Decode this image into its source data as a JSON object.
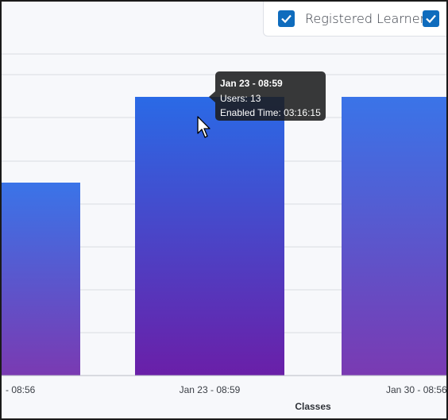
{
  "legend": {
    "items": [
      {
        "label": "Registered Learners",
        "checked": true
      },
      {
        "label": "",
        "checked": true
      }
    ]
  },
  "tooltip": {
    "title": "Jan 23 - 08:59",
    "users_label": "Users:",
    "users_value": "13",
    "time_label": "Enabled Time:",
    "time_value": "03:16:15"
  },
  "chart_data": {
    "type": "bar",
    "categories": [
      "- 08:56",
      "Jan 23 - 08:59",
      "Jan 30 - 08:56"
    ],
    "values": [
      9,
      13,
      13
    ],
    "xlabel": "Classes",
    "ylabel": "",
    "ylim": [
      0,
      15
    ],
    "grid": true,
    "colors": {
      "bar_top": "#2a6ae6",
      "bar_bottom": "#6a1fa8",
      "grid": "#d8dbe2",
      "axis": "#b8bcc5"
    }
  }
}
